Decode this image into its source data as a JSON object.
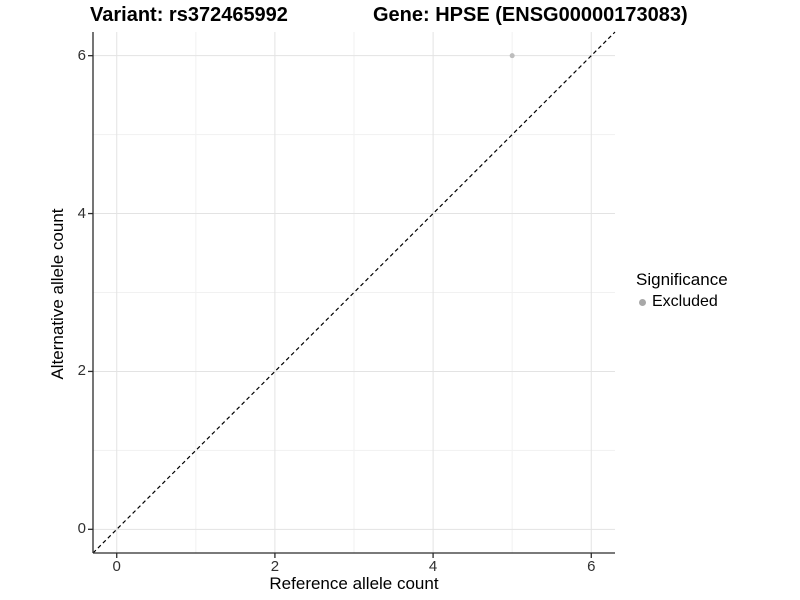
{
  "chart_data": {
    "type": "scatter",
    "title_left": "Variant: rs372465992",
    "title_right": "Gene: HPSE (ENSG00000173083)",
    "xlabel": "Reference allele count",
    "ylabel": "Alternative allele count",
    "xlim": [
      -0.3,
      6.3
    ],
    "ylim": [
      -0.3,
      6.3
    ],
    "x_ticks": [
      0,
      2,
      4,
      6
    ],
    "y_ticks": [
      0,
      2,
      4,
      6
    ],
    "x_minor_ticks": [
      1,
      3,
      5
    ],
    "y_minor_ticks": [
      1,
      3,
      5
    ],
    "grid": true,
    "points": [
      {
        "x": 5,
        "y": 6,
        "series": "Excluded"
      }
    ],
    "reference_line": {
      "style": "dashed",
      "from": [
        -0.3,
        -0.3
      ],
      "to": [
        6.3,
        6.3
      ],
      "color": "#000000"
    },
    "legend": {
      "position": "right",
      "title": "Significance",
      "entries": [
        {
          "label": "Excluded",
          "color": "#b0b0b0"
        }
      ]
    },
    "colors": {
      "point": "#bdbdbd",
      "legend_dot": "#a8a8a8",
      "grid_major": "#e3e3e3",
      "grid_minor": "#f1f1f1",
      "axis_line": "#2b2b2b",
      "tick_mark": "#2b2b2b",
      "background": "#ffffff"
    }
  }
}
